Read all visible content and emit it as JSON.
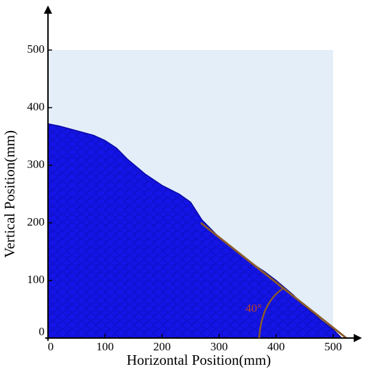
{
  "chart_data": {
    "type": "area",
    "xlabel": "Horizontal Position(mm)",
    "ylabel": "Vertical Position(mm)",
    "x": [
      0,
      20,
      50,
      80,
      100,
      120,
      140,
      170,
      200,
      230,
      250,
      270,
      300,
      330,
      350,
      380,
      400,
      430,
      450,
      480,
      500,
      515
    ],
    "series": [
      {
        "color": "#1414e6",
        "values": [
          372,
          368,
          360,
          352,
          343,
          330,
          310,
          285,
          265,
          250,
          236,
          205,
          175,
          150,
          135,
          115,
          100,
          75,
          55,
          30,
          15,
          0
        ]
      }
    ],
    "xlim": [
      0,
      500
    ],
    "ylim": [
      0,
      500
    ],
    "xticks": [
      0,
      100,
      200,
      300,
      400,
      500
    ],
    "yticks": [
      0,
      100,
      200,
      300,
      400,
      500
    ],
    "background": "#e3eef9",
    "reference_line": {
      "x": [
        268,
        523
      ],
      "y": [
        200,
        0
      ],
      "color": "#8b5a2b"
    },
    "annotation": "40°"
  }
}
